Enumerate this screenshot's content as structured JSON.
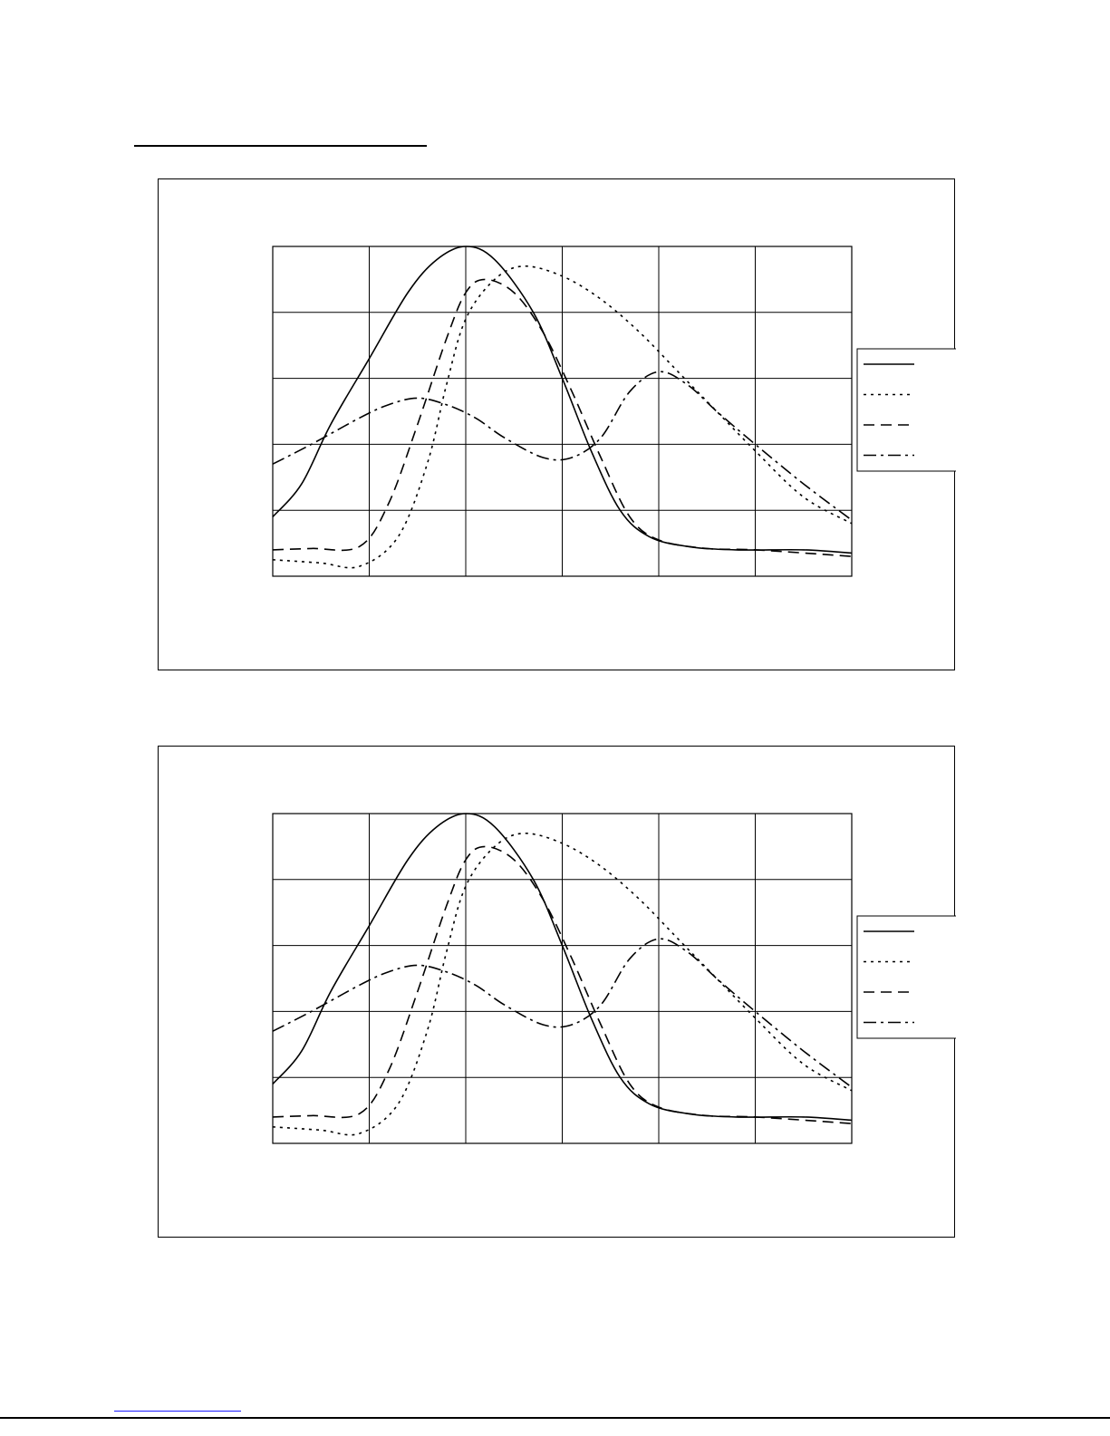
{
  "chart_data": [
    {
      "type": "line",
      "title": "",
      "xlabel": "",
      "ylabel": "",
      "grid": true,
      "legend_position": "right",
      "xlim": [
        0,
        6
      ],
      "ylim": [
        0,
        5
      ],
      "x_divisions": 6,
      "y_divisions": 5,
      "series": [
        {
          "style": "solid",
          "values": [
            [
              0,
              0.9
            ],
            [
              0.3,
              1.4
            ],
            [
              0.6,
              2.3
            ],
            [
              1,
              3.3
            ],
            [
              1.4,
              4.3
            ],
            [
              1.7,
              4.8
            ],
            [
              2,
              5
            ],
            [
              2.3,
              4.8
            ],
            [
              2.7,
              4.0
            ],
            [
              3,
              3.0
            ],
            [
              3.3,
              1.9
            ],
            [
              3.6,
              1.0
            ],
            [
              3.9,
              0.6
            ],
            [
              4.3,
              0.45
            ],
            [
              4.8,
              0.4
            ],
            [
              5.5,
              0.4
            ],
            [
              6,
              0.35
            ]
          ]
        },
        {
          "style": "dotted",
          "values": [
            [
              0,
              0.25
            ],
            [
              0.5,
              0.2
            ],
            [
              0.9,
              0.15
            ],
            [
              1.3,
              0.6
            ],
            [
              1.6,
              1.7
            ],
            [
              1.8,
              2.9
            ],
            [
              2,
              3.9
            ],
            [
              2.3,
              4.5
            ],
            [
              2.6,
              4.7
            ],
            [
              3,
              4.55
            ],
            [
              3.4,
              4.2
            ],
            [
              3.8,
              3.7
            ],
            [
              4.2,
              3.1
            ],
            [
              4.6,
              2.5
            ],
            [
              5,
              1.9
            ],
            [
              5.5,
              1.2
            ],
            [
              6,
              0.8
            ]
          ]
        },
        {
          "style": "dashed",
          "values": [
            [
              0,
              0.4
            ],
            [
              0.4,
              0.42
            ],
            [
              0.9,
              0.45
            ],
            [
              1.2,
              1.1
            ],
            [
              1.5,
              2.3
            ],
            [
              1.8,
              3.6
            ],
            [
              2,
              4.3
            ],
            [
              2.2,
              4.5
            ],
            [
              2.5,
              4.3
            ],
            [
              2.8,
              3.7
            ],
            [
              3.1,
              2.8
            ],
            [
              3.4,
              1.8
            ],
            [
              3.7,
              0.9
            ],
            [
              4,
              0.55
            ],
            [
              4.5,
              0.42
            ],
            [
              5,
              0.4
            ],
            [
              6,
              0.3
            ]
          ]
        },
        {
          "style": "dashdot",
          "values": [
            [
              0,
              1.7
            ],
            [
              0.4,
              2.0
            ],
            [
              0.9,
              2.4
            ],
            [
              1.2,
              2.6
            ],
            [
              1.5,
              2.7
            ],
            [
              1.8,
              2.6
            ],
            [
              2.1,
              2.4
            ],
            [
              2.4,
              2.1
            ],
            [
              2.8,
              1.8
            ],
            [
              3.1,
              1.8
            ],
            [
              3.4,
              2.1
            ],
            [
              3.7,
              2.8
            ],
            [
              4,
              3.1
            ],
            [
              4.3,
              2.9
            ],
            [
              4.6,
              2.5
            ],
            [
              5,
              2.0
            ],
            [
              5.5,
              1.4
            ],
            [
              6,
              0.85
            ]
          ]
        }
      ],
      "legend": {
        "entries": 4
      }
    },
    {
      "type": "line",
      "title": "",
      "xlabel": "",
      "ylabel": "",
      "grid": true,
      "legend_position": "right",
      "xlim": [
        0,
        6
      ],
      "ylim": [
        0,
        5
      ],
      "x_divisions": 6,
      "y_divisions": 5,
      "series": [
        {
          "style": "solid",
          "values": [
            [
              0,
              0.9
            ],
            [
              0.3,
              1.4
            ],
            [
              0.6,
              2.3
            ],
            [
              1,
              3.3
            ],
            [
              1.4,
              4.3
            ],
            [
              1.7,
              4.8
            ],
            [
              2,
              5
            ],
            [
              2.3,
              4.8
            ],
            [
              2.7,
              4.0
            ],
            [
              3,
              3.0
            ],
            [
              3.3,
              1.9
            ],
            [
              3.6,
              1.0
            ],
            [
              3.9,
              0.6
            ],
            [
              4.3,
              0.45
            ],
            [
              4.8,
              0.4
            ],
            [
              5.5,
              0.4
            ],
            [
              6,
              0.35
            ]
          ]
        },
        {
          "style": "dotted",
          "values": [
            [
              0,
              0.25
            ],
            [
              0.5,
              0.2
            ],
            [
              0.9,
              0.15
            ],
            [
              1.3,
              0.6
            ],
            [
              1.6,
              1.7
            ],
            [
              1.8,
              2.9
            ],
            [
              2,
              3.9
            ],
            [
              2.3,
              4.5
            ],
            [
              2.6,
              4.7
            ],
            [
              3,
              4.55
            ],
            [
              3.4,
              4.2
            ],
            [
              3.8,
              3.7
            ],
            [
              4.2,
              3.1
            ],
            [
              4.6,
              2.5
            ],
            [
              5,
              1.9
            ],
            [
              5.5,
              1.2
            ],
            [
              6,
              0.8
            ]
          ]
        },
        {
          "style": "dashed",
          "values": [
            [
              0,
              0.4
            ],
            [
              0.4,
              0.42
            ],
            [
              0.9,
              0.45
            ],
            [
              1.2,
              1.1
            ],
            [
              1.5,
              2.3
            ],
            [
              1.8,
              3.6
            ],
            [
              2,
              4.3
            ],
            [
              2.2,
              4.5
            ],
            [
              2.5,
              4.3
            ],
            [
              2.8,
              3.7
            ],
            [
              3.1,
              2.8
            ],
            [
              3.4,
              1.8
            ],
            [
              3.7,
              0.9
            ],
            [
              4,
              0.55
            ],
            [
              4.5,
              0.42
            ],
            [
              5,
              0.4
            ],
            [
              6,
              0.3
            ]
          ]
        },
        {
          "style": "dashdot",
          "values": [
            [
              0,
              1.7
            ],
            [
              0.4,
              2.0
            ],
            [
              0.9,
              2.4
            ],
            [
              1.2,
              2.6
            ],
            [
              1.5,
              2.7
            ],
            [
              1.8,
              2.6
            ],
            [
              2.1,
              2.4
            ],
            [
              2.4,
              2.1
            ],
            [
              2.8,
              1.8
            ],
            [
              3.1,
              1.8
            ],
            [
              3.4,
              2.1
            ],
            [
              3.7,
              2.8
            ],
            [
              4,
              3.1
            ],
            [
              4.3,
              2.9
            ],
            [
              4.6,
              2.5
            ],
            [
              5,
              2.0
            ],
            [
              5.5,
              1.4
            ],
            [
              6,
              0.85
            ]
          ]
        }
      ],
      "legend": {
        "entries": 4
      }
    }
  ]
}
